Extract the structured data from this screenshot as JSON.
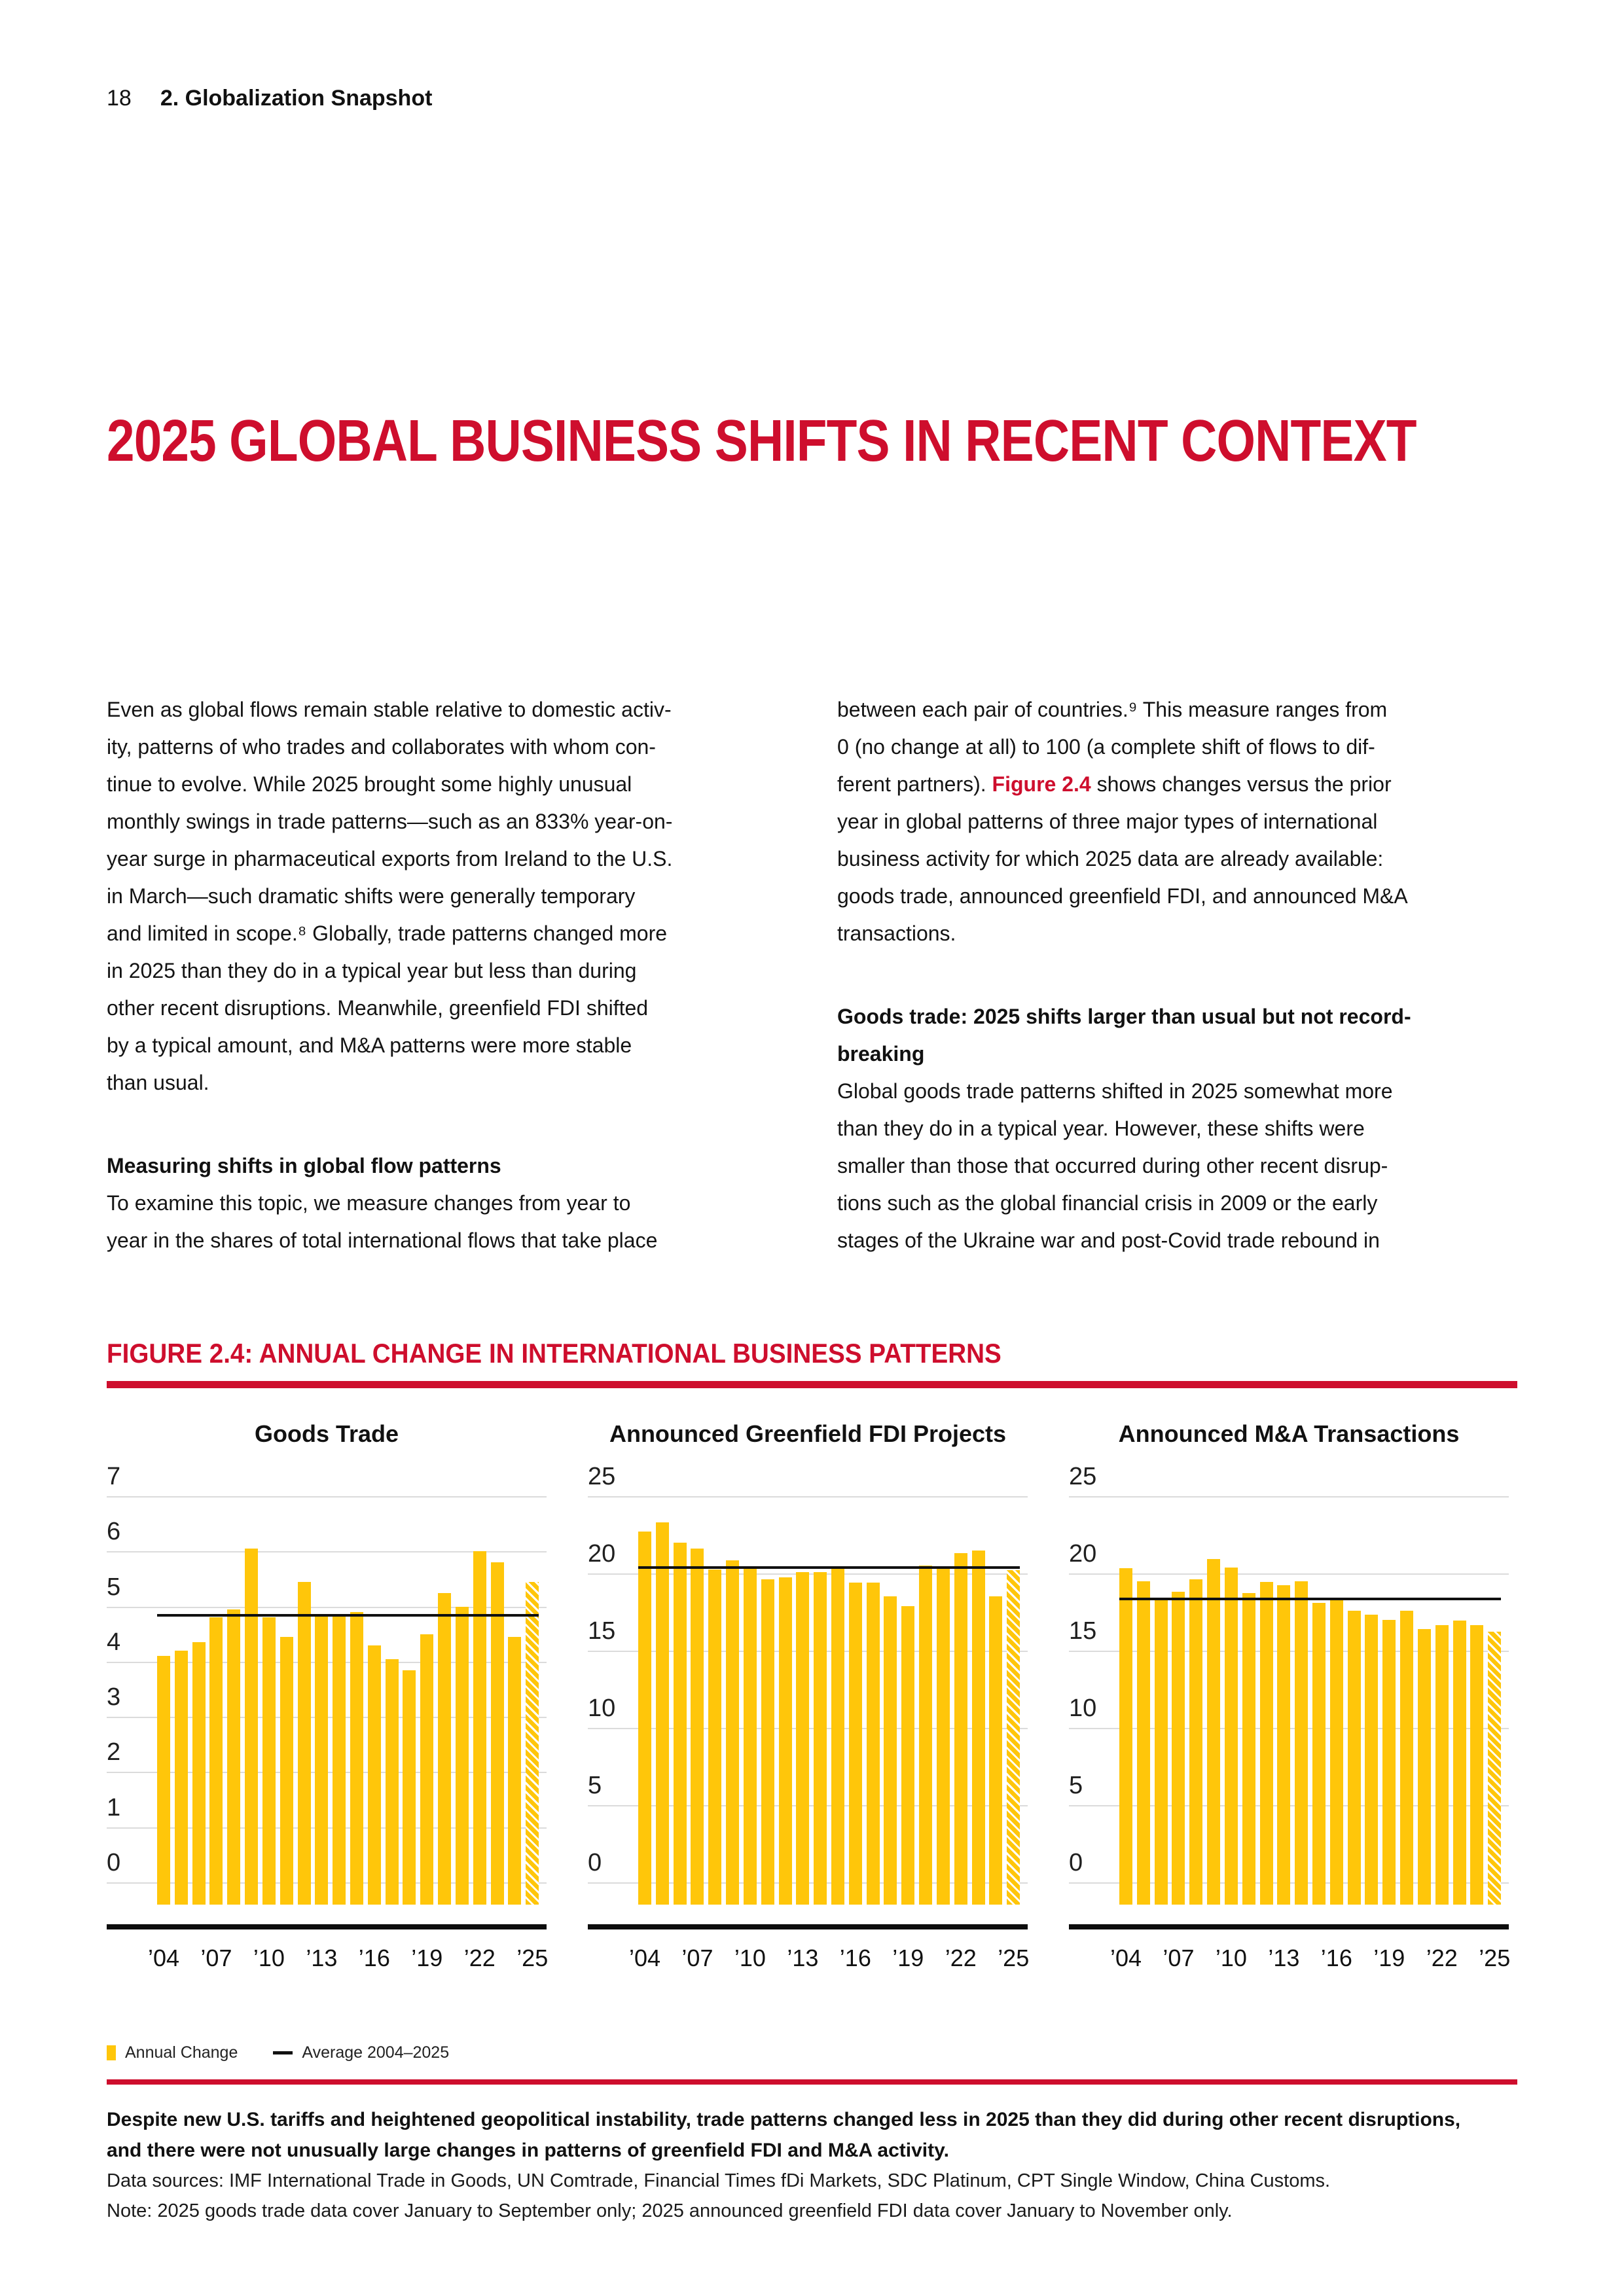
{
  "page": {
    "number": "18",
    "section": "2. Globalization Snapshot"
  },
  "title": "2025 GLOBAL BUSINESS SHIFTS IN RECENT CONTEXT",
  "columns": {
    "left": {
      "para1": [
        "Even as global flows remain stable relative to domestic activ-",
        "ity, patterns of who trades and collaborates with whom con-",
        "tinue to evolve. While 2025 brought some highly unusual",
        "monthly swings in trade patterns—such as an 833% year-on-",
        "year surge in pharmaceutical exports from Ireland to the U.S.",
        "in March—such dramatic shifts were generally temporary",
        "and limited in scope.⁸ Globally, trade patterns changed more",
        "in 2025 than they do in a typical year but less than during",
        "other recent disruptions. Meanwhile, greenfield FDI shifted",
        "by a typical amount, and M&A patterns were more stable",
        "than usual."
      ],
      "subhead": "Measuring shifts in global flow patterns",
      "para2": [
        "To examine this topic, we measure changes from year to",
        "year in the shares of total international flows that take place"
      ]
    },
    "right": {
      "para1_pre": "between each pair of countries.⁹ This measure ranges from\n0 (no change at all) to 100 (a complete shift of flows to dif-\nferent partners). ",
      "figure_ref": "Figure 2.4",
      "para1_post": " shows changes versus the prior\nyear in global patterns of three major types of international\nbusiness activity for which 2025 data are already available:\ngoods trade, announced greenfield FDI, and announced M&A\ntransactions.",
      "subhead": [
        "Goods trade: 2025 shifts larger than usual but not record-",
        "breaking"
      ],
      "para2": [
        "Global goods trade patterns shifted in 2025 somewhat more",
        "than they do in a typical year. However, these shifts were",
        "smaller than those that occurred during other recent disrup-",
        "tions such as the global financial crisis in 2009 or the early",
        "stages of the Ukraine war and post-Covid trade rebound in"
      ]
    }
  },
  "figure": {
    "heading": "FIGURE 2.4: ANNUAL CHANGE IN INTERNATIONAL BUSINESS PATTERNS"
  },
  "legend": {
    "annual_change": "Annual Change",
    "average": "Average 2004–2025"
  },
  "footer": {
    "caption": [
      "Despite new U.S. tariffs and heightened geopolitical instability, trade patterns changed less in 2025 than they did during other recent disruptions,",
      "and there were not unusually large changes in patterns of greenfield FDI and M&A activity."
    ],
    "sources": "Data sources: IMF International Trade in Goods, UN Comtrade, Financial Times fDi Markets, SDC Platinum, CPT Single Window, China Customs.",
    "note": "Note: 2025 goods trade data cover January to September only; 2025 announced greenfield FDI data cover January to November only."
  },
  "colors": {
    "accent_red": "#CE0E2D",
    "bar_yellow": "#FFC60A",
    "gridline_gray": "#DBDBDB",
    "average_line_black": "#101010"
  },
  "chart_data": [
    {
      "type": "bar",
      "title": "Goods Trade",
      "x": [
        2004,
        2005,
        2006,
        2007,
        2008,
        2009,
        2010,
        2011,
        2012,
        2013,
        2014,
        2015,
        2016,
        2017,
        2018,
        2019,
        2020,
        2021,
        2022,
        2023,
        2024,
        2025
      ],
      "values": [
        4.1,
        4.2,
        4.35,
        4.8,
        4.95,
        6.05,
        4.8,
        4.45,
        5.45,
        4.85,
        4.85,
        4.9,
        4.3,
        4.05,
        3.85,
        4.5,
        5.25,
        5.0,
        6.0,
        5.8,
        4.45,
        5.45
      ],
      "average": 4.84,
      "average_label": "Average 2004–2025",
      "series_label": "Annual Change",
      "ylim": [
        0,
        7
      ],
      "yticks": [
        0,
        1,
        2,
        3,
        4,
        5,
        6,
        7
      ],
      "xtick_labels": [
        "’04",
        "’07",
        "’10",
        "’13",
        "’16",
        "’19",
        "’22",
        "’25"
      ],
      "xtick_positions": [
        0,
        3,
        6,
        9,
        12,
        15,
        18,
        21
      ],
      "grid": true,
      "legend_position": "bottom",
      "hatch_last": true
    },
    {
      "type": "bar",
      "title": "Announced Greenfield FDI Projects",
      "x": [
        2004,
        2005,
        2006,
        2007,
        2008,
        2009,
        2010,
        2011,
        2012,
        2013,
        2014,
        2015,
        2016,
        2017,
        2018,
        2019,
        2020,
        2021,
        2022,
        2023,
        2024,
        2025
      ],
      "values": [
        22.7,
        23.3,
        22.0,
        21.6,
        20.25,
        20.85,
        20.4,
        19.6,
        19.75,
        20.1,
        20.1,
        20.3,
        19.4,
        19.4,
        18.5,
        17.9,
        20.5,
        20.4,
        21.3,
        21.5,
        18.5,
        20.2
      ],
      "average": 20.4,
      "average_label": "Average 2004–2025",
      "series_label": "Annual Change",
      "ylim": [
        0,
        25
      ],
      "yticks": [
        0,
        5,
        10,
        15,
        20,
        25
      ],
      "xtick_labels": [
        "’04",
        "’07",
        "’10",
        "’13",
        "’16",
        "’19",
        "’22",
        "’25"
      ],
      "xtick_positions": [
        0,
        3,
        6,
        9,
        12,
        15,
        18,
        21
      ],
      "grid": true,
      "legend_position": "bottom",
      "hatch_last": true
    },
    {
      "type": "bar",
      "title": "Announced M&A Transactions",
      "x": [
        2004,
        2005,
        2006,
        2007,
        2008,
        2009,
        2010,
        2011,
        2012,
        2013,
        2014,
        2015,
        2016,
        2017,
        2018,
        2019,
        2020,
        2021,
        2022,
        2023,
        2024,
        2025
      ],
      "values": [
        20.35,
        19.5,
        18.35,
        18.8,
        19.6,
        20.95,
        20.4,
        18.75,
        19.45,
        19.25,
        19.5,
        18.1,
        18.4,
        17.6,
        17.35,
        17.0,
        17.6,
        16.4,
        16.65,
        16.95,
        16.65,
        16.25
      ],
      "average": 18.35,
      "average_label": "Average 2004–2025",
      "series_label": "Annual Change",
      "ylim": [
        0,
        25
      ],
      "yticks": [
        0,
        5,
        10,
        15,
        20,
        25
      ],
      "xtick_labels": [
        "’04",
        "’07",
        "’10",
        "’13",
        "’16",
        "’19",
        "’22",
        "’25"
      ],
      "xtick_positions": [
        0,
        3,
        6,
        9,
        12,
        15,
        18,
        21
      ],
      "grid": true,
      "legend_position": "bottom",
      "hatch_last": true
    }
  ]
}
